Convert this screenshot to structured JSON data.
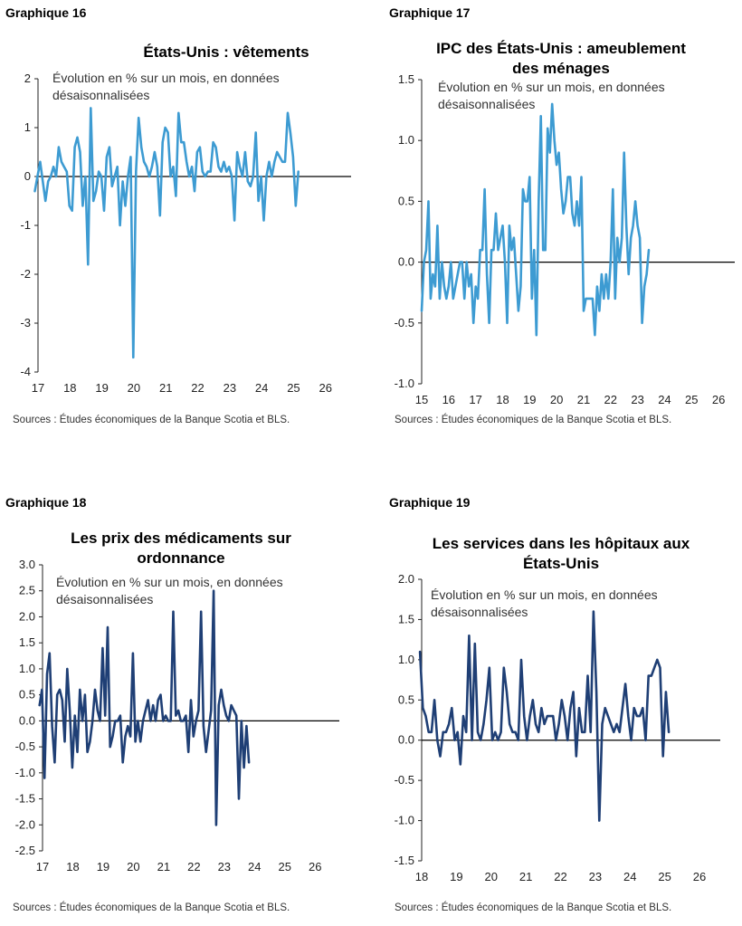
{
  "chart_data": [
    {
      "type": "line",
      "graph_label": "Graphique 16",
      "title": "États-Unis : vêtements",
      "subtitle": "Évolution en % sur un mois, en données désaisonnalisées",
      "source": "Sources : Études économiques de la Banque Scotia et BLS.",
      "color": "#3d9bd2",
      "ylim": [
        -4,
        2
      ],
      "yticks": [
        "2",
        "1",
        "0",
        "-1",
        "-2",
        "-3",
        "-4"
      ],
      "ytick_values": [
        2,
        1,
        0,
        -1,
        -2,
        -3,
        -4
      ],
      "x_range": [
        2017,
        2026.8
      ],
      "xticks": [
        "17",
        "18",
        "19",
        "20",
        "21",
        "22",
        "23",
        "24",
        "25",
        "26"
      ],
      "xtick_values": [
        2017,
        2018,
        2019,
        2020,
        2021,
        2022,
        2023,
        2024,
        2025,
        2026
      ],
      "x_start": 2016.9,
      "x_step": 0.0833333,
      "values": [
        -0.3,
        0.0,
        0.3,
        -0.1,
        -0.5,
        -0.1,
        0.0,
        0.2,
        0.0,
        0.6,
        0.3,
        0.2,
        0.1,
        -0.6,
        -0.7,
        0.6,
        0.8,
        0.5,
        -0.6,
        0.0,
        -1.8,
        1.4,
        -0.5,
        -0.3,
        0.1,
        0.0,
        -0.7,
        0.4,
        0.6,
        -0.2,
        0.0,
        0.2,
        -1.0,
        -0.1,
        -0.6,
        0.0,
        0.4,
        -3.7,
        0.1,
        1.2,
        0.6,
        0.3,
        0.2,
        0.0,
        0.2,
        0.5,
        0.2,
        -0.8,
        0.7,
        1.0,
        0.9,
        0.0,
        0.2,
        -0.4,
        1.3,
        0.7,
        0.7,
        0.3,
        0.0,
        0.2,
        -0.3,
        0.5,
        0.6,
        0.1,
        0.0,
        0.1,
        0.1,
        0.7,
        0.6,
        0.2,
        0.1,
        0.3,
        0.1,
        0.2,
        0.0,
        -0.9,
        0.5,
        0.2,
        0.0,
        0.5,
        -0.1,
        -0.2,
        0.0,
        0.9,
        -0.5,
        0.0,
        -0.9,
        0.0,
        0.3,
        0.0,
        0.3,
        0.5,
        0.4,
        0.3,
        0.3,
        1.3,
        0.9,
        0.4,
        -0.6,
        0.1
      ]
    },
    {
      "type": "line",
      "graph_label": "Graphique 17",
      "title": "IPC des États-Unis : ameublement des ménages",
      "subtitle": "Évolution en % sur un mois, en données désaisonnalisées",
      "source": "Sources : Études économiques de la Banque Scotia et BLS.",
      "color": "#3d9bd2",
      "ylim": [
        -1.0,
        1.5
      ],
      "yticks": [
        "1.5",
        "1.0",
        "0.5",
        "0.0",
        "-0.5",
        "-1.0"
      ],
      "ytick_values": [
        1.5,
        1.0,
        0.5,
        0.0,
        -0.5,
        -1.0
      ],
      "x_range": [
        2015,
        2026.6
      ],
      "xticks": [
        "15",
        "16",
        "17",
        "18",
        "19",
        "20",
        "21",
        "22",
        "23",
        "24",
        "25",
        "26"
      ],
      "xtick_values": [
        2015,
        2016,
        2017,
        2018,
        2019,
        2020,
        2021,
        2022,
        2023,
        2024,
        2025,
        2026
      ],
      "x_start": 2015,
      "x_step": 0.0833333,
      "values": [
        -0.4,
        0.0,
        0.1,
        0.5,
        -0.3,
        -0.1,
        -0.2,
        0.3,
        -0.3,
        0.0,
        -0.2,
        -0.3,
        -0.2,
        0.0,
        -0.3,
        -0.2,
        -0.1,
        0.0,
        0.0,
        -0.3,
        0.0,
        -0.2,
        -0.1,
        -0.5,
        -0.2,
        -0.3,
        0.1,
        0.1,
        0.6,
        -0.1,
        -0.5,
        0.1,
        0.1,
        0.4,
        0.1,
        0.2,
        0.3,
        0.0,
        -0.5,
        0.3,
        0.1,
        0.2,
        -0.1,
        -0.4,
        -0.2,
        0.6,
        0.5,
        0.5,
        0.7,
        -0.3,
        0.1,
        -0.6,
        0.5,
        1.2,
        0.1,
        0.1,
        1.1,
        0.9,
        1.3,
        1.0,
        0.8,
        0.9,
        0.6,
        0.4,
        0.5,
        0.7,
        0.7,
        0.4,
        0.3,
        0.5,
        0.3,
        0.7,
        -0.4,
        -0.3,
        -0.3,
        -0.3,
        -0.3,
        -0.6,
        -0.2,
        -0.4,
        -0.1,
        -0.3,
        -0.1,
        -0.3,
        0.0,
        0.6,
        -0.3,
        0.2,
        0.0,
        0.2,
        0.9,
        0.3,
        -0.1,
        0.2,
        0.3,
        0.5,
        0.3,
        0.2,
        -0.5,
        -0.2,
        -0.1,
        0.1
      ]
    },
    {
      "type": "line",
      "graph_label": "Graphique 18",
      "title": "Les prix des médicaments sur ordonnance",
      "subtitle": "Évolution en % sur un mois, en données désaisonnalisées",
      "source": "Sources : Études économiques de la Banque Scotia et BLS.",
      "color": "#1f3f75",
      "ylim": [
        -2.5,
        3.0
      ],
      "yticks": [
        "3.0",
        "2.5",
        "2.0",
        "1.5",
        "1.0",
        "0.5",
        "0.0",
        "-0.5",
        "-1.0",
        "-1.5",
        "-2.0",
        "-2.5"
      ],
      "ytick_values": [
        3.0,
        2.5,
        2.0,
        1.5,
        1.0,
        0.5,
        0.0,
        -0.5,
        -1.0,
        -1.5,
        -2.0,
        -2.5
      ],
      "x_range": [
        2017,
        2026.8
      ],
      "xticks": [
        "17",
        "18",
        "19",
        "20",
        "21",
        "22",
        "23",
        "24",
        "25",
        "26"
      ],
      "xtick_values": [
        2017,
        2018,
        2019,
        2020,
        2021,
        2022,
        2023,
        2024,
        2025,
        2026
      ],
      "x_start": 2016.9,
      "x_step": 0.0833333,
      "values": [
        0.3,
        0.6,
        -1.1,
        0.9,
        1.3,
        -0.1,
        -0.8,
        0.5,
        0.6,
        0.4,
        -0.4,
        1.0,
        0.2,
        -0.9,
        0.1,
        -0.6,
        0.6,
        0.0,
        0.5,
        -0.6,
        -0.4,
        0.0,
        0.6,
        0.2,
        0.0,
        1.4,
        0.1,
        1.8,
        -0.5,
        -0.3,
        0.0,
        0.0,
        0.1,
        -0.8,
        -0.3,
        -0.1,
        -0.3,
        1.3,
        -0.4,
        0.0,
        -0.4,
        0.0,
        0.2,
        0.4,
        0.0,
        0.3,
        0.0,
        0.4,
        0.5,
        0.0,
        0.1,
        0.0,
        0.0,
        2.1,
        0.1,
        0.2,
        0.0,
        0.0,
        0.1,
        -0.6,
        0.4,
        -0.3,
        0.0,
        0.2,
        2.1,
        -0.1,
        -0.6,
        -0.2,
        0.2,
        2.5,
        -2.0,
        0.3,
        0.6,
        0.3,
        0.1,
        0.0,
        0.3,
        0.2,
        0.1,
        -1.5,
        0.0,
        -0.9,
        -0.1,
        -0.8
      ]
    },
    {
      "type": "line",
      "graph_label": "Graphique 19",
      "title": "Les services dans les hôpitaux aux États-Unis",
      "subtitle": "Évolution en % sur un mois, en données désaisonnalisées",
      "source": "Sources : Études économiques de la Banque Scotia et BLS.",
      "color": "#1f3f75",
      "ylim": [
        -1.5,
        2.0
      ],
      "yticks": [
        "2.0",
        "1.5",
        "1.0",
        "0.5",
        "0.0",
        "-0.5",
        "-1.0",
        "-1.5"
      ],
      "ytick_values": [
        2.0,
        1.5,
        1.0,
        0.5,
        0.0,
        -0.5,
        -1.0,
        -1.5
      ],
      "x_range": [
        2018,
        2026.6
      ],
      "xticks": [
        "18",
        "19",
        "20",
        "21",
        "22",
        "23",
        "24",
        "25",
        "26"
      ],
      "xtick_values": [
        2018,
        2019,
        2020,
        2021,
        2022,
        2023,
        2024,
        2025,
        2026
      ],
      "x_start": 2017.95,
      "x_step": 0.0833333,
      "values": [
        1.1,
        0.4,
        0.3,
        0.1,
        0.1,
        0.5,
        0.0,
        -0.2,
        0.1,
        0.1,
        0.2,
        0.4,
        0.0,
        0.1,
        -0.3,
        0.3,
        0.1,
        1.3,
        0.0,
        1.2,
        0.1,
        0.0,
        0.2,
        0.5,
        0.9,
        0.0,
        0.1,
        0.0,
        0.1,
        0.9,
        0.6,
        0.2,
        0.1,
        0.1,
        0.0,
        1.0,
        0.3,
        0.0,
        0.3,
        0.5,
        0.2,
        0.1,
        0.4,
        0.2,
        0.3,
        0.3,
        0.3,
        0.0,
        0.2,
        0.5,
        0.3,
        0.0,
        0.4,
        0.6,
        -0.2,
        0.4,
        0.1,
        0.1,
        0.8,
        0.1,
        1.6,
        0.6,
        -1.0,
        0.2,
        0.4,
        0.3,
        0.2,
        0.1,
        0.2,
        0.1,
        0.4,
        0.7,
        0.3,
        0.0,
        0.4,
        0.3,
        0.3,
        0.4,
        0.0,
        0.8,
        0.8,
        0.9,
        1.0,
        0.9,
        -0.2,
        0.6,
        0.1
      ]
    }
  ]
}
